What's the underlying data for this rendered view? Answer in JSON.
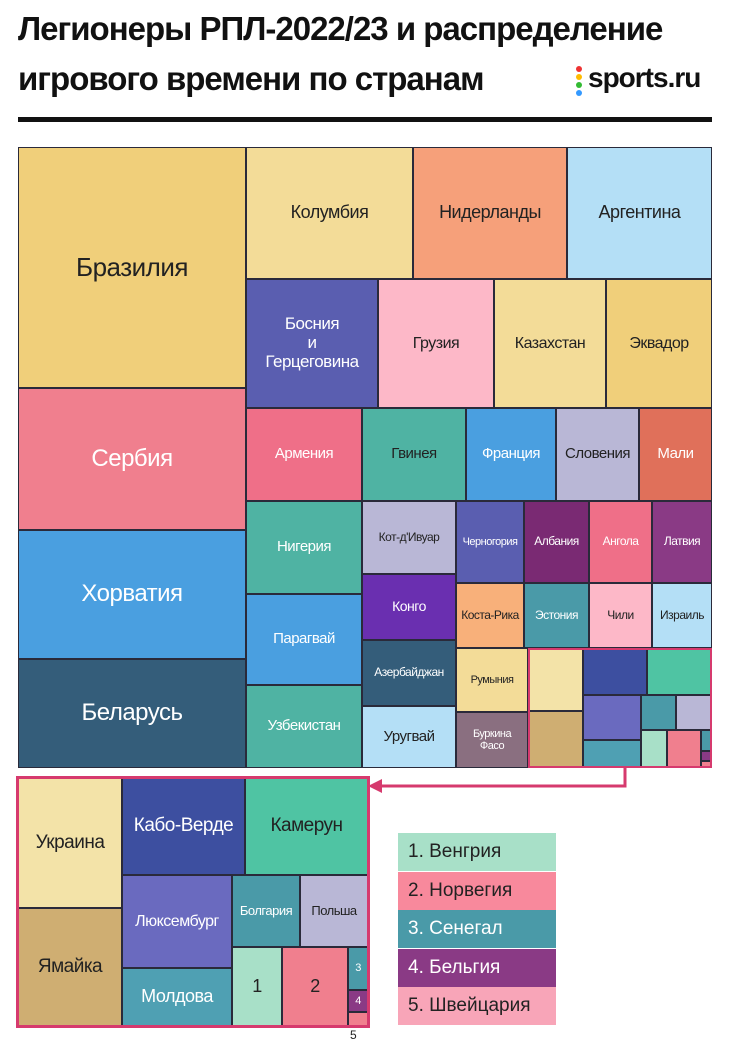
{
  "header": {
    "title_line1": "Легионеры РПЛ-2022/23 и распределение",
    "title_line2": "игрового времени по странам",
    "logo": "sports.ru"
  },
  "tiles": [
    "Бразилия",
    "Сербия",
    "Хорватия",
    "Беларусь",
    "Колумбия",
    "Нидерланды",
    "Аргентина",
    "Босния и Герцеговина",
    "Грузия",
    "Казахстан",
    "Эквадор",
    "Армения",
    "Гвинея",
    "Франция",
    "Словения",
    "Мали",
    "Нигерия",
    "Парагвай",
    "Узбекистан",
    "Кот-д'Ивуар",
    "Конго",
    "Азербайджан",
    "Уругвай",
    "Черногория",
    "Албания",
    "Ангола",
    "Латвия",
    "Коста-Рика",
    "Эстония",
    "Чили",
    "Израиль",
    "Румыния",
    "Буркина Фасо"
  ],
  "inset_tiles": [
    "Украина",
    "Ямайка",
    "Кабо-Верде",
    "Камерун",
    "Люксембург",
    "Молдова",
    "Болгария",
    "Польша",
    "1",
    "2",
    "3",
    "4",
    "5"
  ],
  "legend": [
    "1. Венгрия",
    "2. Норвегия",
    "3. Сенегал",
    "4. Бельгия",
    "5. Швейцария"
  ]
}
